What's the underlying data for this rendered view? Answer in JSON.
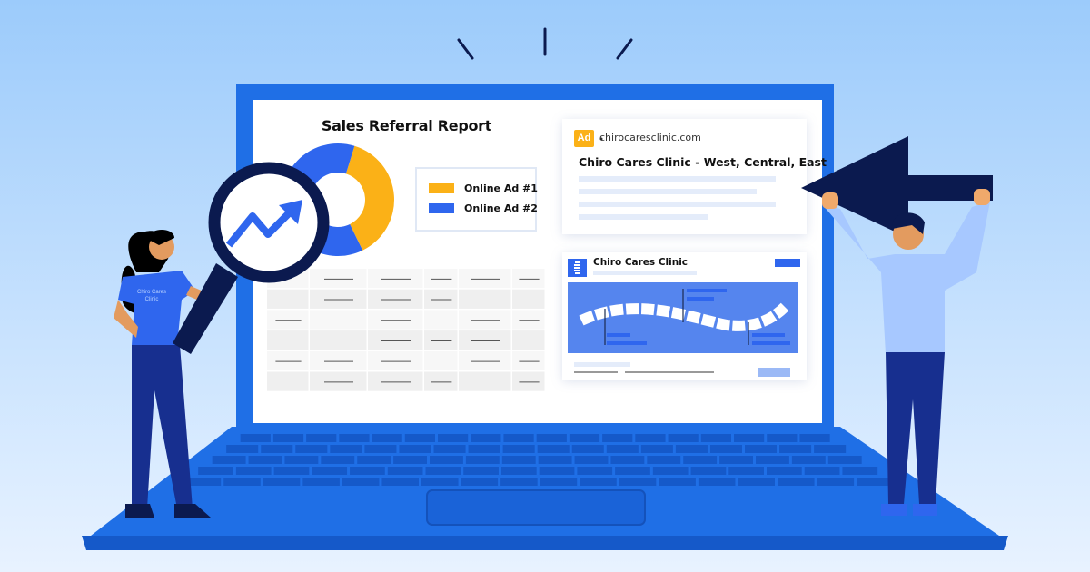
{
  "report": {
    "title": "Sales Referral Report",
    "legend": [
      {
        "label": "Online Ad #1",
        "color": "#fbb117"
      },
      {
        "label": "Online Ad #2",
        "color": "#2f66ee"
      }
    ]
  },
  "chart_data": {
    "type": "pie",
    "style": "donut",
    "categories": [
      "Online Ad #1",
      "Online Ad #2"
    ],
    "values": [
      38,
      62
    ],
    "colors": [
      "#fbb117",
      "#2f66ee"
    ]
  },
  "ad_card": {
    "badge": "Ad",
    "url": "chirocaresclinic.com",
    "headline": "Chiro Cares Clinic - West, Central, East"
  },
  "listing_card": {
    "name": "Chiro Cares Clinic"
  },
  "mascot_shirt": "Chiro Cares Clinic",
  "colors": {
    "laptop": "#1f6fe6",
    "navy": "#0b1a4f",
    "accent_blue": "#2f66ee",
    "accent_yellow": "#fbb117"
  },
  "icons": [
    "magnifier-trend-icon",
    "left-arrow-icon",
    "spine-logo-icon"
  ]
}
